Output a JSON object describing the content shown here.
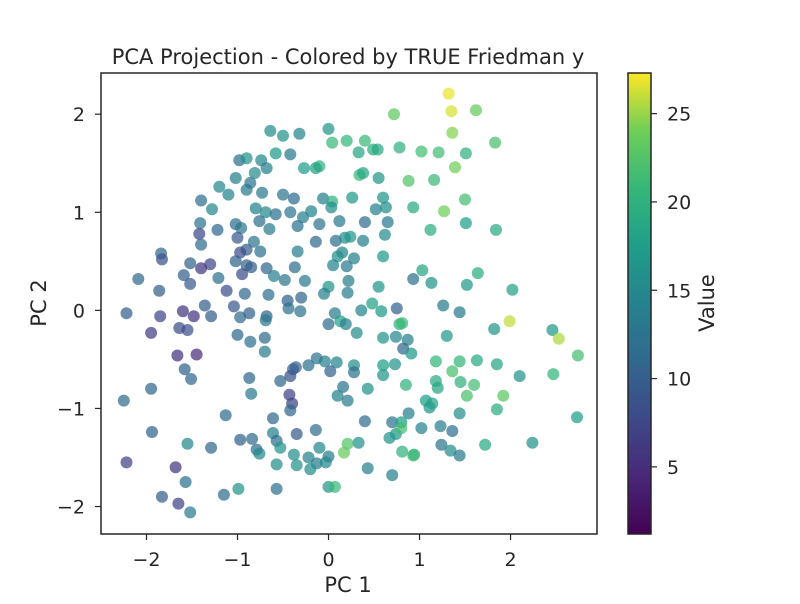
{
  "chart_data": {
    "type": "scatter",
    "title": "PCA Projection - Colored by TRUE Friedman y",
    "xlabel": "PC 1",
    "ylabel": "PC 2",
    "xlim": [
      -2.5,
      2.95
    ],
    "ylim": [
      -2.28,
      2.42
    ],
    "xticks": [
      -2,
      -1,
      0,
      1,
      2
    ],
    "xtick_labels": [
      "−2",
      "−1",
      "0",
      "1",
      "2"
    ],
    "yticks": [
      -2,
      -1,
      0,
      1,
      2
    ],
    "ytick_labels": [
      "−2",
      "−1",
      "0",
      "1",
      "2"
    ],
    "grid": false,
    "colorbar": {
      "label": "Value",
      "colormap": "viridis",
      "range": [
        1.2,
        27.3
      ],
      "ticks": [
        5,
        10,
        15,
        20,
        25
      ],
      "tick_labels": [
        "5",
        "10",
        "15",
        "20",
        "25"
      ]
    },
    "points": [
      [
        1.32,
        2.21,
        26.9
      ],
      [
        1.35,
        2.03,
        26.4
      ],
      [
        0.72,
        2.0,
        23.0
      ],
      [
        1.62,
        2.04,
        23.5
      ],
      [
        1.36,
        1.81,
        24.5
      ],
      [
        1.83,
        1.71,
        22.0
      ],
      [
        -0.64,
        1.83,
        15.5
      ],
      [
        -0.32,
        1.8,
        14.5
      ],
      [
        0.0,
        1.85,
        16.5
      ],
      [
        0.2,
        1.73,
        20.5
      ],
      [
        0.4,
        1.73,
        21.0
      ],
      [
        0.49,
        1.64,
        19.5
      ],
      [
        0.54,
        1.64,
        19.0
      ],
      [
        0.78,
        1.66,
        20.0
      ],
      [
        1.02,
        1.62,
        21.5
      ],
      [
        1.21,
        1.61,
        21.5
      ],
      [
        1.51,
        1.6,
        20.0
      ],
      [
        1.39,
        1.46,
        24.0
      ],
      [
        0.04,
        1.71,
        21.0
      ],
      [
        0.33,
        1.61,
        18.5
      ],
      [
        -0.5,
        1.78,
        16.0
      ],
      [
        -0.42,
        1.59,
        13.0
      ],
      [
        -0.58,
        1.6,
        17.0
      ],
      [
        -0.74,
        1.53,
        15.0
      ],
      [
        -0.98,
        1.53,
        12.0
      ],
      [
        -0.9,
        1.55,
        16.0
      ],
      [
        -0.68,
        1.45,
        14.0
      ],
      [
        -0.81,
        1.4,
        15.5
      ],
      [
        -0.27,
        1.45,
        17.5
      ],
      [
        -0.1,
        1.47,
        20.0
      ],
      [
        -0.14,
        1.45,
        18.0
      ],
      [
        0.34,
        1.38,
        21.0
      ],
      [
        0.38,
        1.4,
        18.5
      ],
      [
        0.55,
        1.35,
        16.5
      ],
      [
        0.88,
        1.32,
        22.5
      ],
      [
        1.16,
        1.33,
        21.0
      ],
      [
        -1.02,
        1.35,
        14.0
      ],
      [
        -0.86,
        1.3,
        12.5
      ],
      [
        -0.9,
        1.23,
        13.0
      ],
      [
        -1.2,
        1.26,
        15.0
      ],
      [
        -1.1,
        1.18,
        14.5
      ],
      [
        -1.4,
        1.12,
        12.0
      ],
      [
        -1.28,
        1.03,
        15.0
      ],
      [
        -0.73,
        1.2,
        13.0
      ],
      [
        -0.5,
        1.18,
        12.5
      ],
      [
        -0.38,
        1.14,
        11.5
      ],
      [
        -0.06,
        1.14,
        14.0
      ],
      [
        0.26,
        1.15,
        17.0
      ],
      [
        0.04,
        1.11,
        20.0
      ],
      [
        0.6,
        1.15,
        16.5
      ],
      [
        0.52,
        1.03,
        14.0
      ],
      [
        0.63,
        1.05,
        15.5
      ],
      [
        0.93,
        1.05,
        19.0
      ],
      [
        1.27,
        1.01,
        24.0
      ],
      [
        1.5,
        1.13,
        21.5
      ],
      [
        -0.8,
        1.04,
        14.5
      ],
      [
        -0.69,
        1.0,
        15.0
      ],
      [
        -0.58,
        0.98,
        12.0
      ],
      [
        -0.42,
        1.0,
        12.5
      ],
      [
        -0.28,
        0.95,
        14.0
      ],
      [
        -0.19,
        1.01,
        14.5
      ],
      [
        0.03,
        1.05,
        15.5
      ],
      [
        -1.41,
        0.89,
        12.5
      ],
      [
        -1.22,
        0.82,
        11.0
      ],
      [
        -1.02,
        0.88,
        12.0
      ],
      [
        -0.96,
        0.84,
        13.0
      ],
      [
        -1.42,
        0.78,
        7.5
      ],
      [
        -0.76,
        0.91,
        12.0
      ],
      [
        -0.65,
        0.83,
        13.5
      ],
      [
        -0.34,
        0.86,
        12.0
      ],
      [
        -0.1,
        0.88,
        12.5
      ],
      [
        0.12,
        0.91,
        13.0
      ],
      [
        0.4,
        0.9,
        11.5
      ],
      [
        0.65,
        0.9,
        13.0
      ],
      [
        0.62,
        0.77,
        15.5
      ],
      [
        1.12,
        0.82,
        19.5
      ],
      [
        1.51,
        0.89,
        17.5
      ],
      [
        1.84,
        0.82,
        19.0
      ],
      [
        -1.0,
        0.74,
        9.5
      ],
      [
        -0.82,
        0.7,
        12.5
      ],
      [
        -0.9,
        0.62,
        10.0
      ],
      [
        -1.4,
        0.67,
        11.5
      ],
      [
        -0.14,
        0.7,
        11.0
      ],
      [
        0.08,
        0.71,
        12.0
      ],
      [
        0.18,
        0.74,
        15.5
      ],
      [
        0.24,
        0.75,
        16.5
      ],
      [
        0.38,
        0.71,
        14.0
      ],
      [
        -0.97,
        0.59,
        8.0
      ],
      [
        -0.75,
        0.6,
        12.0
      ],
      [
        -0.34,
        0.6,
        14.0
      ],
      [
        0.15,
        0.59,
        14.5
      ],
      [
        -1.84,
        0.58,
        11.0
      ],
      [
        -1.83,
        0.52,
        8.5
      ],
      [
        -1.02,
        0.5,
        10.5
      ],
      [
        -0.9,
        0.46,
        10.5
      ],
      [
        0.1,
        0.55,
        16.0
      ],
      [
        0.28,
        0.53,
        14.0
      ],
      [
        0.6,
        0.55,
        17.0
      ],
      [
        -1.52,
        0.48,
        10.5
      ],
      [
        -1.3,
        0.47,
        7.5
      ],
      [
        -1.4,
        0.43,
        6.0
      ],
      [
        -0.95,
        0.37,
        8.0
      ],
      [
        -0.85,
        0.44,
        10.0
      ],
      [
        -0.68,
        0.43,
        11.0
      ],
      [
        -0.37,
        0.44,
        12.0
      ],
      [
        0.05,
        0.46,
        14.5
      ],
      [
        0.2,
        0.45,
        13.0
      ],
      [
        1.03,
        0.41,
        18.5
      ],
      [
        1.64,
        0.38,
        19.5
      ],
      [
        -2.09,
        0.32,
        11.0
      ],
      [
        -1.59,
        0.36,
        10.0
      ],
      [
        -1.52,
        0.27,
        9.5
      ],
      [
        -1.21,
        0.33,
        12.0
      ],
      [
        -0.6,
        0.35,
        14.0
      ],
      [
        -0.48,
        0.31,
        12.5
      ],
      [
        -0.26,
        0.3,
        13.0
      ],
      [
        0.0,
        0.24,
        16.0
      ],
      [
        0.22,
        0.3,
        13.5
      ],
      [
        0.55,
        0.24,
        16.5
      ],
      [
        0.93,
        0.32,
        12.0
      ],
      [
        1.13,
        0.28,
        16.0
      ],
      [
        1.52,
        0.26,
        17.0
      ],
      [
        -1.86,
        0.2,
        10.0
      ],
      [
        -1.12,
        0.2,
        8.5
      ],
      [
        -0.92,
        0.17,
        11.0
      ],
      [
        -0.66,
        0.16,
        11.5
      ],
      [
        -0.45,
        0.1,
        10.5
      ],
      [
        -0.3,
        0.13,
        11.0
      ],
      [
        -0.05,
        0.17,
        14.0
      ],
      [
        0.21,
        0.18,
        14.0
      ],
      [
        0.48,
        0.07,
        18.0
      ],
      [
        2.02,
        0.21,
        18.0
      ],
      [
        -2.22,
        -0.03,
        10.0
      ],
      [
        -1.6,
        -0.01,
        6.0
      ],
      [
        -1.36,
        0.05,
        10.0
      ],
      [
        -1.04,
        0.04,
        9.5
      ],
      [
        -0.97,
        -0.07,
        11.5
      ],
      [
        -0.87,
        -0.03,
        10.5
      ],
      [
        -0.68,
        -0.06,
        10.5
      ],
      [
        -0.44,
        0.02,
        12.0
      ],
      [
        -0.31,
        -0.01,
        12.5
      ],
      [
        0.07,
        -0.03,
        13.5
      ],
      [
        0.36,
        0.0,
        14.5
      ],
      [
        0.58,
        -0.01,
        17.0
      ],
      [
        0.75,
        0.02,
        10.5
      ],
      [
        1.26,
        0.05,
        13.5
      ],
      [
        1.44,
        -0.02,
        13.0
      ],
      [
        -1.85,
        -0.06,
        7.5
      ],
      [
        -1.48,
        -0.06,
        6.0
      ],
      [
        -1.29,
        -0.06,
        10.0
      ],
      [
        -0.69,
        -0.1,
        13.0
      ],
      [
        0.0,
        -0.14,
        11.5
      ],
      [
        0.13,
        -0.11,
        18.0
      ],
      [
        0.19,
        -0.14,
        14.0
      ],
      [
        0.78,
        -0.14,
        20.0
      ],
      [
        0.81,
        -0.13,
        21.0
      ],
      [
        1.99,
        -0.11,
        26.0
      ],
      [
        -1.95,
        -0.23,
        6.5
      ],
      [
        -1.64,
        -0.18,
        8.0
      ],
      [
        -1.55,
        -0.2,
        8.5
      ],
      [
        -1.0,
        -0.25,
        11.0
      ],
      [
        -0.7,
        -0.28,
        11.5
      ],
      [
        -0.86,
        -0.32,
        12.0
      ],
      [
        0.31,
        -0.23,
        15.5
      ],
      [
        0.6,
        -0.28,
        16.0
      ],
      [
        0.74,
        -0.27,
        15.0
      ],
      [
        0.87,
        -0.3,
        14.0
      ],
      [
        1.3,
        -0.26,
        17.0
      ],
      [
        1.82,
        -0.19,
        16.5
      ],
      [
        2.46,
        -0.2,
        17.0
      ],
      [
        2.53,
        -0.29,
        25.5
      ],
      [
        -1.66,
        -0.46,
        5.5
      ],
      [
        -1.45,
        -0.45,
        5.0
      ],
      [
        -0.7,
        -0.42,
        13.5
      ],
      [
        -0.36,
        -0.58,
        10.5
      ],
      [
        -0.22,
        -0.56,
        12.0
      ],
      [
        -0.13,
        -0.49,
        12.5
      ],
      [
        -0.04,
        -0.52,
        14.0
      ],
      [
        0.09,
        -0.53,
        14.5
      ],
      [
        0.28,
        -0.56,
        15.5
      ],
      [
        0.6,
        -0.56,
        17.5
      ],
      [
        0.82,
        -0.39,
        11.0
      ],
      [
        0.91,
        -0.44,
        17.0
      ],
      [
        1.18,
        -0.52,
        20.5
      ],
      [
        1.44,
        -0.52,
        20.5
      ],
      [
        1.63,
        -0.51,
        19.0
      ],
      [
        2.74,
        -0.46,
        21.5
      ],
      [
        -1.58,
        -0.6,
        10.5
      ],
      [
        -0.39,
        -0.6,
        10.0
      ],
      [
        -0.42,
        -0.67,
        9.0
      ],
      [
        0.02,
        -0.62,
        10.5
      ],
      [
        0.28,
        -0.63,
        12.0
      ],
      [
        0.6,
        -0.66,
        16.5
      ],
      [
        0.73,
        -0.55,
        16.0
      ],
      [
        1.36,
        -0.62,
        22.0
      ],
      [
        1.85,
        -0.55,
        18.5
      ],
      [
        2.1,
        -0.67,
        16.0
      ],
      [
        2.47,
        -0.65,
        20.5
      ],
      [
        -1.51,
        -0.7,
        11.0
      ],
      [
        -0.87,
        -0.69,
        11.0
      ],
      [
        -0.53,
        -0.72,
        11.0
      ],
      [
        0.16,
        -0.78,
        12.5
      ],
      [
        0.85,
        -0.76,
        20.0
      ],
      [
        1.18,
        -0.72,
        19.0
      ],
      [
        1.2,
        -0.79,
        18.5
      ],
      [
        1.45,
        -0.73,
        20.0
      ],
      [
        -1.95,
        -0.8,
        11.0
      ],
      [
        0.43,
        -0.8,
        16.0
      ],
      [
        1.6,
        -0.76,
        21.5
      ],
      [
        1.92,
        -0.87,
        23.0
      ],
      [
        -0.85,
        -0.85,
        13.0
      ],
      [
        -0.43,
        -0.86,
        7.0
      ],
      [
        0.1,
        -0.87,
        14.5
      ],
      [
        0.21,
        -0.92,
        13.5
      ],
      [
        1.07,
        -0.92,
        17.5
      ],
      [
        1.52,
        -0.87,
        22.0
      ],
      [
        -2.25,
        -0.92,
        11.5
      ],
      [
        -0.4,
        -0.95,
        7.0
      ],
      [
        1.11,
        -0.99,
        16.5
      ],
      [
        1.14,
        -0.95,
        18.0
      ],
      [
        1.85,
        -1.01,
        19.5
      ],
      [
        -1.13,
        -1.07,
        11.5
      ],
      [
        -0.42,
        -1.02,
        11.0
      ],
      [
        0.88,
        -1.05,
        14.0
      ],
      [
        1.44,
        -1.05,
        15.5
      ],
      [
        2.73,
        -1.09,
        17.5
      ],
      [
        -0.61,
        -1.1,
        11.0
      ],
      [
        0.4,
        -1.13,
        11.5
      ],
      [
        0.7,
        -1.14,
        12.5
      ],
      [
        0.8,
        -1.14,
        17.5
      ],
      [
        1.23,
        -1.18,
        14.0
      ],
      [
        -1.94,
        -1.24,
        10.5
      ],
      [
        -0.97,
        -1.32,
        10.5
      ],
      [
        -0.84,
        -1.31,
        11.5
      ],
      [
        -0.61,
        -1.25,
        14.0
      ],
      [
        -0.57,
        -1.33,
        12.0
      ],
      [
        -0.35,
        -1.26,
        9.5
      ],
      [
        -0.14,
        -1.22,
        11.5
      ],
      [
        0.67,
        -1.3,
        16.0
      ],
      [
        0.74,
        -1.26,
        17.0
      ],
      [
        0.8,
        -1.2,
        21.5
      ],
      [
        1.02,
        -1.2,
        14.5
      ],
      [
        1.36,
        -1.23,
        12.0
      ],
      [
        -1.55,
        -1.36,
        15.0
      ],
      [
        -1.29,
        -1.4,
        11.0
      ],
      [
        -0.53,
        -1.4,
        16.5
      ],
      [
        -0.1,
        -1.4,
        15.0
      ],
      [
        0.0,
        -1.49,
        14.0
      ],
      [
        0.21,
        -1.36,
        22.5
      ],
      [
        0.33,
        -1.35,
        16.0
      ],
      [
        1.24,
        -1.37,
        12.5
      ],
      [
        1.34,
        -1.43,
        15.5
      ],
      [
        1.72,
        -1.37,
        19.0
      ],
      [
        2.24,
        -1.35,
        16.0
      ],
      [
        -0.79,
        -1.42,
        12.0
      ],
      [
        -0.76,
        -1.46,
        15.0
      ],
      [
        -0.38,
        -1.47,
        15.5
      ],
      [
        -0.22,
        -1.5,
        14.5
      ],
      [
        0.17,
        -1.45,
        23.5
      ],
      [
        0.81,
        -1.44,
        20.0
      ],
      [
        0.94,
        -1.47,
        18.5
      ],
      [
        1.44,
        -1.48,
        13.0
      ],
      [
        -2.22,
        -1.55,
        7.0
      ],
      [
        -0.57,
        -1.57,
        15.5
      ],
      [
        -0.35,
        -1.58,
        16.0
      ],
      [
        -0.13,
        -1.56,
        14.0
      ],
      [
        -0.03,
        -1.55,
        15.0
      ],
      [
        0.43,
        -1.61,
        14.0
      ],
      [
        0.93,
        -1.48,
        21.5
      ],
      [
        -1.68,
        -1.6,
        6.0
      ],
      [
        -0.2,
        -1.62,
        15.5
      ],
      [
        0.7,
        -1.68,
        14.0
      ],
      [
        -1.57,
        -1.75,
        12.0
      ],
      [
        -0.99,
        -1.82,
        16.0
      ],
      [
        -0.57,
        -1.82,
        12.0
      ],
      [
        0.0,
        -1.8,
        16.5
      ],
      [
        0.07,
        -1.8,
        21.0
      ],
      [
        -1.83,
        -1.9,
        10.0
      ],
      [
        -1.15,
        -1.88,
        11.5
      ],
      [
        -1.65,
        -1.97,
        7.0
      ],
      [
        -1.52,
        -2.06,
        13.5
      ]
    ]
  }
}
